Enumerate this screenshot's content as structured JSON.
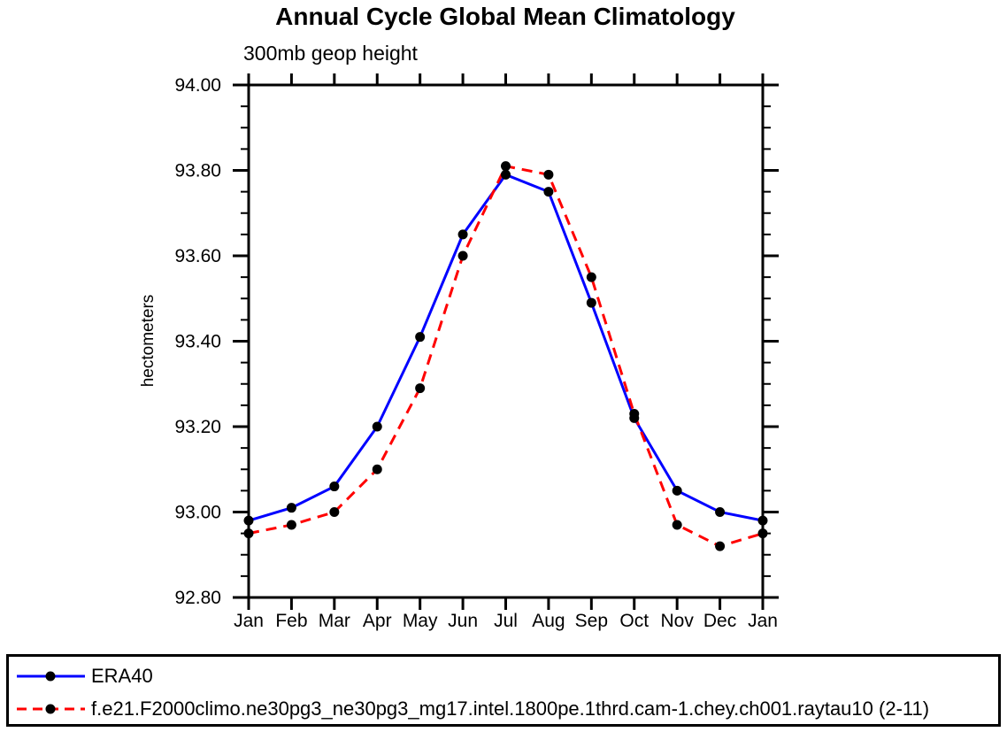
{
  "title": "Annual Cycle Global Mean Climatology",
  "subtitle": "300mb geop height",
  "ylabel": "hectometers",
  "colors": {
    "era40_line": "#0000FF",
    "model_line": "#FF0000",
    "marker": "#000000",
    "axis": "#000000",
    "background": "#FFFFFF"
  },
  "chart_data": {
    "type": "line",
    "title": "Annual Cycle Global Mean Climatology",
    "subtitle": "300mb geop height",
    "ylabel": "hectometers",
    "categories": [
      "Jan",
      "Feb",
      "Mar",
      "Apr",
      "May",
      "Jun",
      "Jul",
      "Aug",
      "Sep",
      "Oct",
      "Nov",
      "Dec",
      "Jan"
    ],
    "series": [
      {
        "name": "ERA40",
        "color": "#0000FF",
        "line_style": "solid",
        "marker": "black-dot",
        "values": [
          92.98,
          93.01,
          93.06,
          93.2,
          93.41,
          93.65,
          93.79,
          93.75,
          93.49,
          93.22,
          93.05,
          93.0,
          92.98
        ]
      },
      {
        "name": "f.e21.F2000climo.ne30pg3_ne30pg3_mg17.intel.1800pe.1thrd.cam-1.chey.ch001.raytau10 (2-11)",
        "color": "#FF0000",
        "line_style": "dashed",
        "marker": "black-dot",
        "values": [
          92.95,
          92.97,
          93.0,
          93.1,
          93.29,
          93.6,
          93.81,
          93.79,
          93.55,
          93.23,
          92.97,
          92.92,
          92.95
        ]
      }
    ],
    "ylim": [
      92.8,
      94.0
    ],
    "ytick_major_step": 0.2,
    "ytick_minor_step": 0.05,
    "ytick_labels": [
      "92.80",
      "93.00",
      "93.20",
      "93.40",
      "93.60",
      "93.80",
      "94.00"
    ],
    "grid": false,
    "legend_position": "bottom"
  }
}
